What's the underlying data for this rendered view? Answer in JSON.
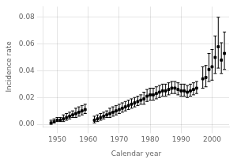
{
  "chart_data": {
    "type": "scatter",
    "xlabel": "Calendar year",
    "ylabel": "Incidence rate",
    "xlim": [
      1945.5,
      2005.5
    ],
    "ylim": [
      -0.002,
      0.088
    ],
    "xticks": [
      1950,
      1960,
      1970,
      1980,
      1990,
      2000
    ],
    "yticks": [
      {
        "value": 0,
        "label": "0.00"
      },
      0.02,
      0.04,
      0.06,
      0.08
    ],
    "grid": true,
    "color": "#000000",
    "marker": "square",
    "x": [
      1948,
      1949,
      1950,
      1951,
      1952,
      1953,
      1954,
      1955,
      1956,
      1957,
      1958,
      1959,
      1962,
      1963,
      1964,
      1965,
      1966,
      1967,
      1968,
      1969,
      1970,
      1971,
      1972,
      1973,
      1974,
      1975,
      1976,
      1977,
      1978,
      1979,
      1980,
      1981,
      1982,
      1983,
      1984,
      1985,
      1986,
      1987,
      1988,
      1989,
      1990,
      1991,
      1992,
      1993,
      1994,
      1995,
      1997,
      1998,
      1999,
      2000,
      2001,
      2002,
      2003,
      2004
    ],
    "values": [
      0.001,
      0.002,
      0.003,
      0.003,
      0.004,
      0.005,
      0.006,
      0.007,
      0.008,
      0.009,
      0.01,
      0.011,
      0.003,
      0.004,
      0.005,
      0.006,
      0.007,
      0.008,
      0.009,
      0.01,
      0.011,
      0.012,
      0.013,
      0.014,
      0.015,
      0.016,
      0.017,
      0.018,
      0.019,
      0.021,
      0.022,
      0.022,
      0.023,
      0.024,
      0.025,
      0.025,
      0.026,
      0.027,
      0.027,
      0.026,
      0.025,
      0.025,
      0.024,
      0.025,
      0.026,
      0.027,
      0.034,
      0.035,
      0.041,
      0.043,
      0.05,
      0.058,
      0.048,
      0.053
    ],
    "err_low": [
      0.001,
      0.001,
      0.001,
      0.001,
      0.002,
      0.002,
      0.002,
      0.002,
      0.003,
      0.003,
      0.003,
      0.003,
      0.002,
      0.002,
      0.002,
      0.002,
      0.002,
      0.003,
      0.003,
      0.003,
      0.003,
      0.003,
      0.003,
      0.003,
      0.003,
      0.003,
      0.003,
      0.003,
      0.004,
      0.004,
      0.004,
      0.004,
      0.004,
      0.004,
      0.004,
      0.004,
      0.004,
      0.004,
      0.004,
      0.004,
      0.004,
      0.004,
      0.004,
      0.004,
      0.004,
      0.004,
      0.007,
      0.007,
      0.009,
      0.01,
      0.012,
      0.016,
      0.01,
      0.012
    ],
    "err_high": [
      0.002,
      0.002,
      0.002,
      0.002,
      0.003,
      0.003,
      0.003,
      0.003,
      0.004,
      0.004,
      0.004,
      0.004,
      0.003,
      0.003,
      0.003,
      0.003,
      0.003,
      0.004,
      0.004,
      0.004,
      0.004,
      0.004,
      0.004,
      0.004,
      0.004,
      0.004,
      0.004,
      0.004,
      0.005,
      0.005,
      0.005,
      0.005,
      0.005,
      0.005,
      0.005,
      0.005,
      0.005,
      0.005,
      0.005,
      0.005,
      0.005,
      0.005,
      0.005,
      0.005,
      0.005,
      0.005,
      0.009,
      0.009,
      0.012,
      0.013,
      0.016,
      0.022,
      0.013,
      0.016
    ]
  }
}
